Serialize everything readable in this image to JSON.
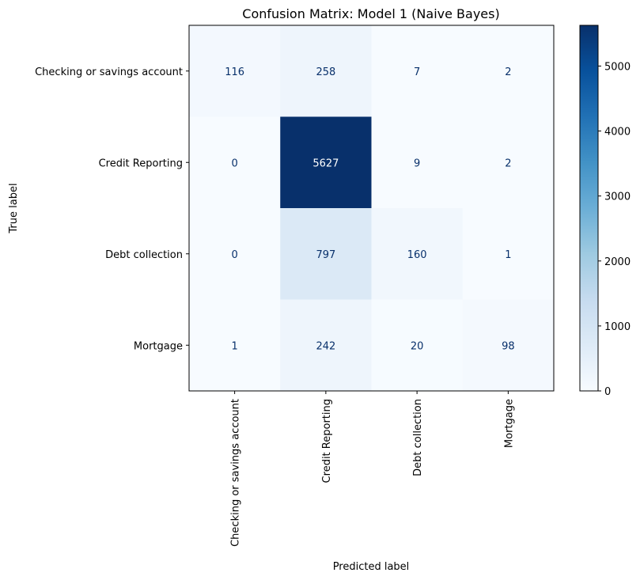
{
  "chart_data": {
    "type": "heatmap",
    "title": "Confusion Matrix: Model 1 (Naive Bayes)",
    "xlabel": "Predicted label",
    "ylabel": "True label",
    "row_labels": [
      "Checking or savings account",
      "Credit Reporting",
      "Debt collection",
      "Mortgage"
    ],
    "col_labels": [
      "Checking or savings account",
      "Credit Reporting",
      "Debt collection",
      "Mortgage"
    ],
    "values": [
      [
        116,
        258,
        7,
        2
      ],
      [
        0,
        5627,
        9,
        2
      ],
      [
        0,
        797,
        160,
        1
      ],
      [
        1,
        242,
        20,
        98
      ]
    ],
    "colormap": "Blues",
    "vmin": 0,
    "vmax": 5627,
    "colorbar_ticks": [
      "0",
      "1000",
      "2000",
      "3000",
      "4000",
      "5000"
    ],
    "colorbar_tick_values": [
      0,
      1000,
      2000,
      3000,
      4000,
      5000
    ],
    "light_text_color": "#ffffff",
    "dark_text_color": "#08306b"
  }
}
